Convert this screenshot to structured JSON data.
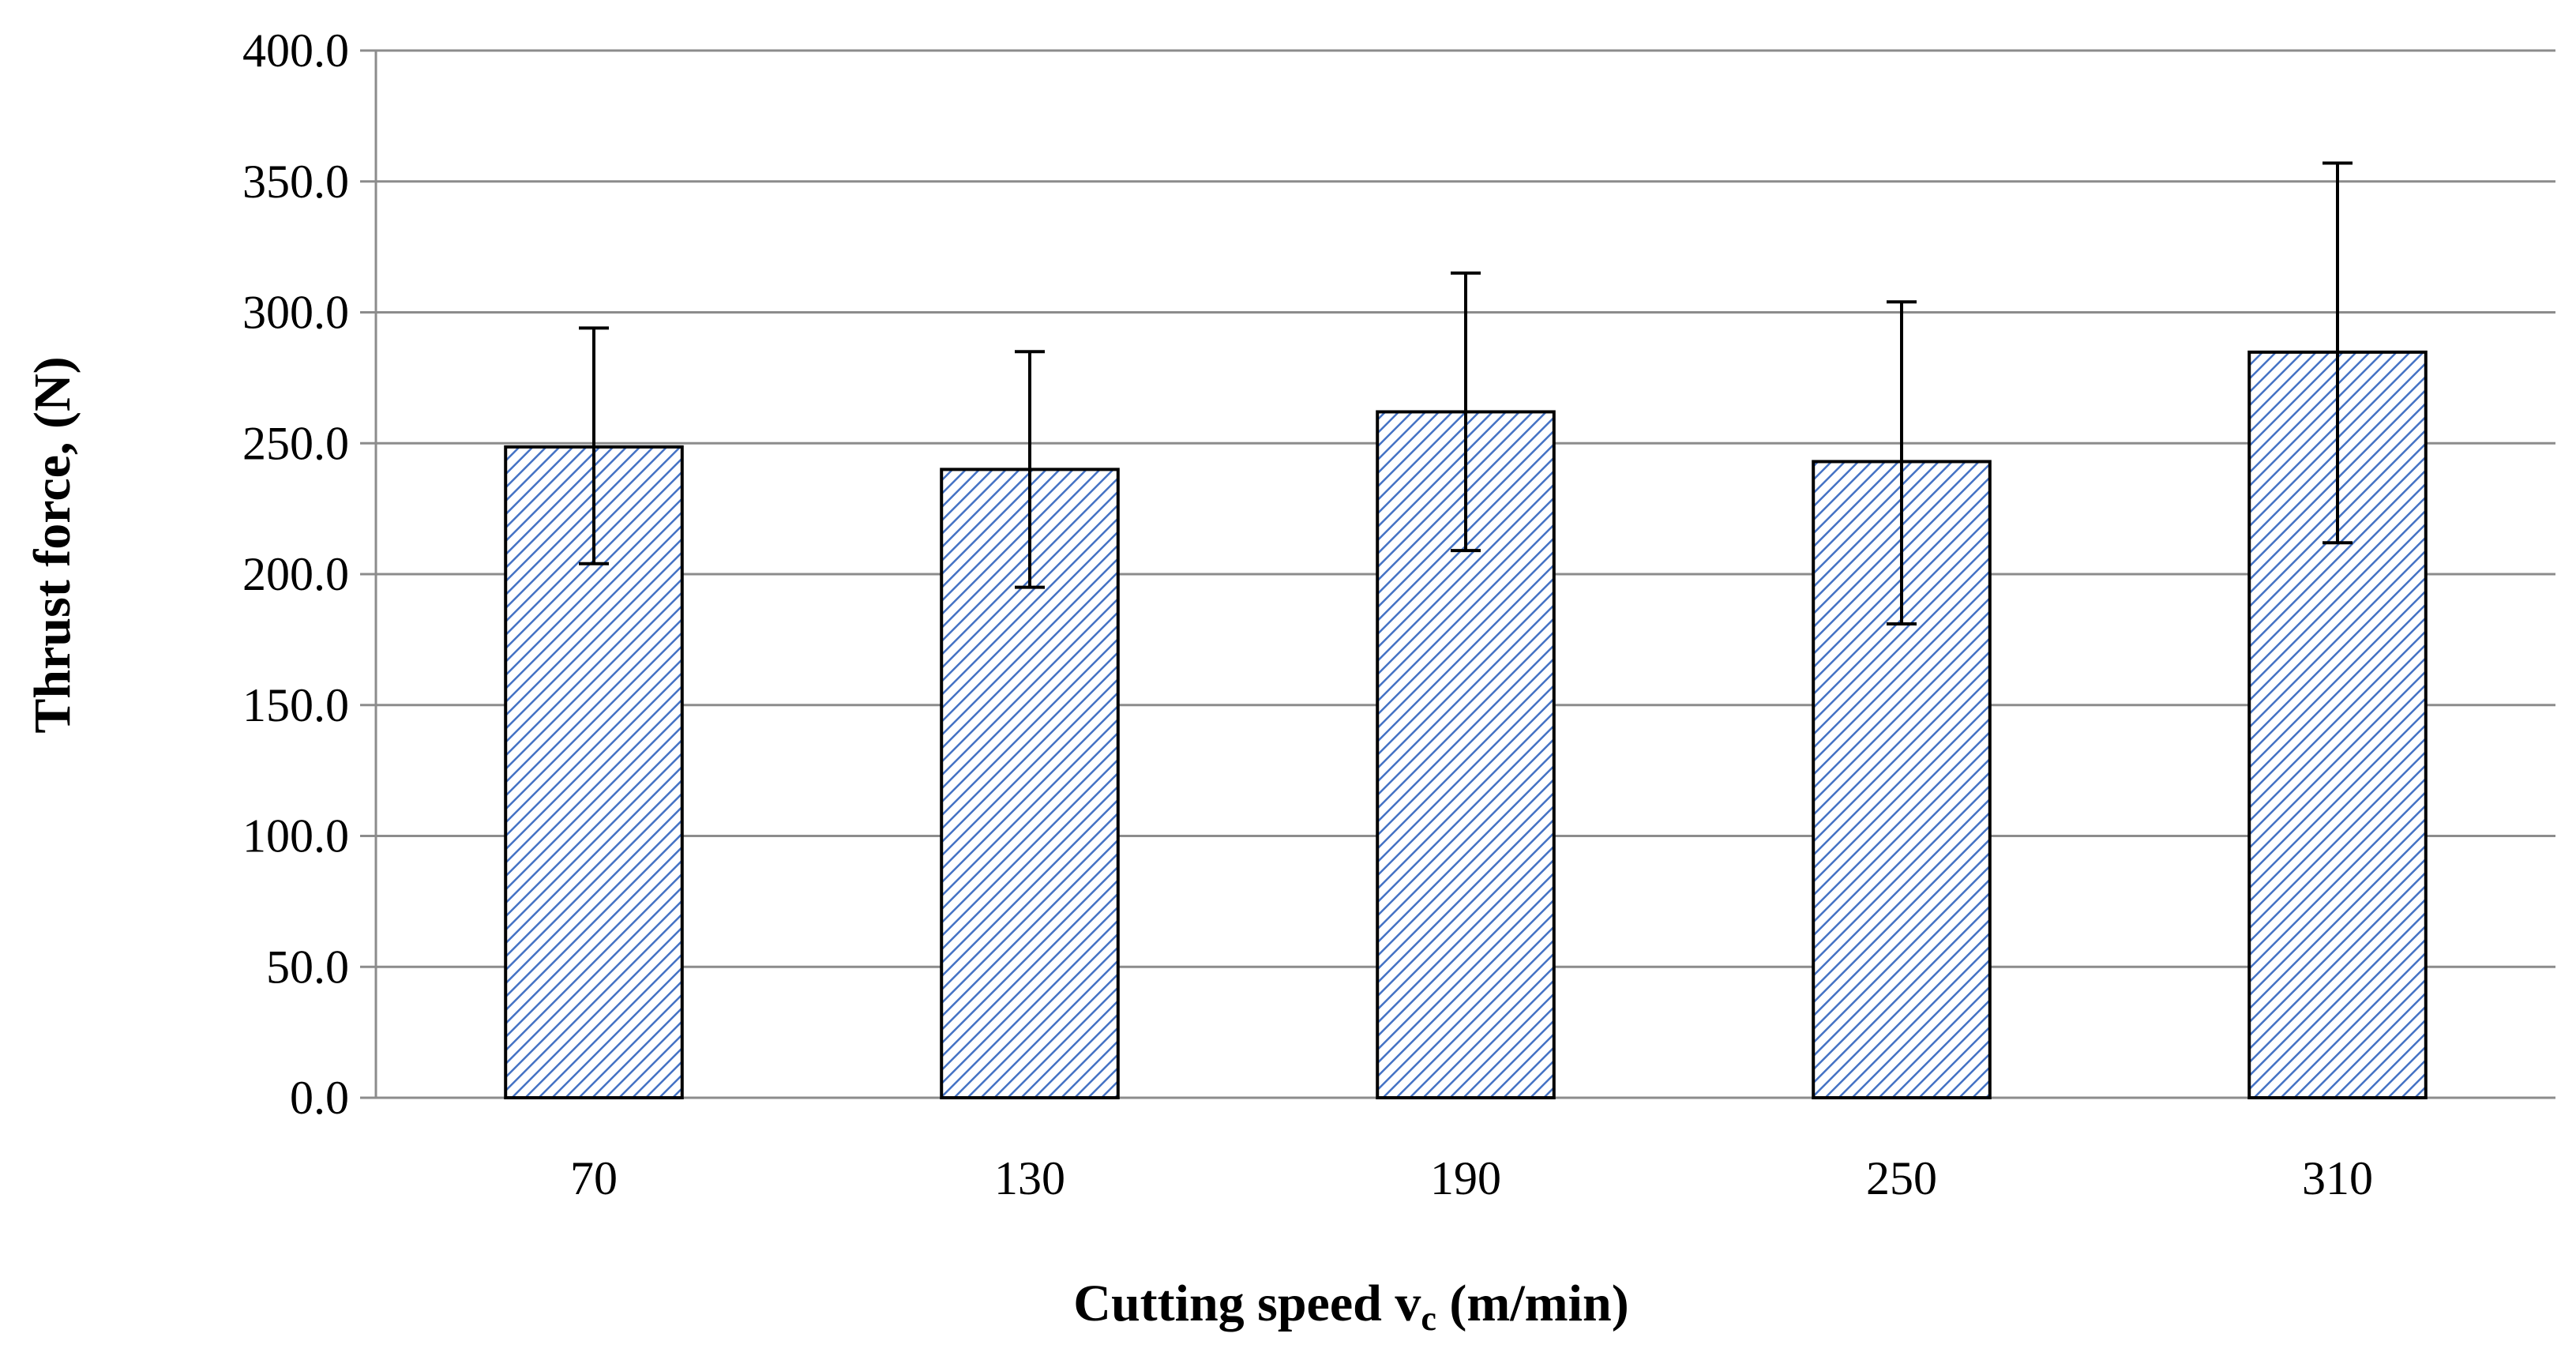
{
  "chart_data": {
    "type": "bar",
    "title": "",
    "xlabel": {
      "main": "Cutting speed v",
      "subscript": "c",
      "suffix": " (m/min)"
    },
    "ylabel": "Thrust force,   (N)",
    "categories": [
      "70",
      "130",
      "190",
      "250",
      "310"
    ],
    "series": [
      {
        "name": "Thrust force",
        "values": [
          248.6,
          240.0,
          262.0,
          243.0,
          284.8
        ],
        "error_low": [
          204.0,
          195.0,
          209.0,
          181.0,
          212.0
        ],
        "error_high": [
          294.0,
          285.0,
          315.0,
          304.0,
          357.0
        ],
        "fill_color": "#4472c4",
        "fill_pattern": "diagonal-hatch"
      }
    ],
    "ylim": [
      0,
      400
    ],
    "y_ticks": [
      "0.0",
      "50.0",
      "100.0",
      "150.0",
      "200.0",
      "250.0",
      "300.0",
      "350.0",
      "400.0"
    ],
    "y_tick_values": [
      0,
      50,
      100,
      150,
      200,
      250,
      300,
      350,
      400
    ],
    "grid": true,
    "legend": "none"
  }
}
